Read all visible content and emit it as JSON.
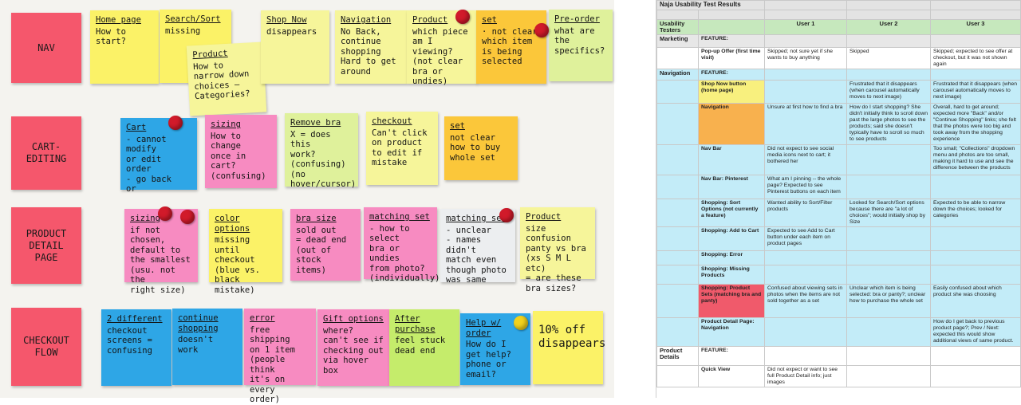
{
  "wall": {
    "rows": [
      {
        "label": "NAV"
      },
      {
        "label": "CART-\nEDITING"
      },
      {
        "label": "PRODUCT\nDETAIL\nPAGE"
      },
      {
        "label": "CHECKOUT\nFLOW"
      }
    ],
    "notes": [
      {
        "head": "Home page",
        "body": "How to\nstart?",
        "color": "yellow"
      },
      {
        "head": "Search/Sort",
        "body": "missing",
        "color": "yellow"
      },
      {
        "head": "Product",
        "body": "How to\nnarrow down\nchoices –\nCategories?",
        "color": "lightyellow"
      },
      {
        "head": "Shop Now",
        "body": "disappears",
        "color": "lightyellow"
      },
      {
        "head": "Navigation",
        "body": "No Back,\ncontinue\nshopping\nHard to get\naround",
        "color": "lightyellow"
      },
      {
        "head": "Product",
        "body": "which piece\nam I\nviewing?\n(not clear\nbra or undies)",
        "color": "lightyellow"
      },
      {
        "head": "set",
        "body": "· not clear\nwhich item\nis being\nselected",
        "color": "orange"
      },
      {
        "head": "Pre-order",
        "body": "what are\nthe specifics?",
        "color": "lightgreen"
      },
      {
        "head": "Cart",
        "body": "- cannot modify\nor edit order\n- go back\nor",
        "color": "blue"
      },
      {
        "head": "sizing",
        "body": "How to change\nonce in\ncart?\n(confusing)",
        "color": "pink"
      },
      {
        "head": "Remove bra",
        "body": "X = does this\nwork?\n(confusing)\n(no hover/cursor)",
        "color": "lightgreen"
      },
      {
        "head": "checkout",
        "body": "Can't click\non product\nto edit if\nmistake",
        "color": "lightyellow"
      },
      {
        "head": "set",
        "body": "not clear\nhow to buy\nwhole set",
        "color": "orange"
      },
      {
        "head": "sizing",
        "body": "if not chosen,\ndefault to\nthe smallest\n(usu. not the\nright size)",
        "color": "pink"
      },
      {
        "head": "color options",
        "body": "missing\nuntil\ncheckout\n(blue vs. black\nmistake)",
        "color": "yellow"
      },
      {
        "head": "bra size",
        "body": "sold out\n= dead end\n(out of stock\nitems)",
        "color": "pink"
      },
      {
        "head": "matching set",
        "body": "- how to select\nbra or undies\nfrom photo?\n(individually)",
        "color": "pink"
      },
      {
        "head": "matching set",
        "body": "- unclear\n- names didn't\nmatch even\nthough photo\nwas same",
        "color": "gray"
      },
      {
        "head": "Product",
        "body": "size confusion\npanty vs bra\n(xs S M L etc)\n= are these\nbra sizes?",
        "color": "lightyellow"
      },
      {
        "head": "2 different",
        "body": "checkout\nscreens =\nconfusing",
        "color": "blue"
      },
      {
        "head": "continue shopping",
        "body": "doesn't work",
        "color": "blue"
      },
      {
        "head": "error",
        "body": "free shipping\non 1 item\n(people think\nit's on every\norder)",
        "color": "pink"
      },
      {
        "head": "Gift options",
        "body": "where?\ncan't see if\nchecking out\nvia hover box",
        "color": "pink"
      },
      {
        "head": "After purchase",
        "body": "feel stuck\ndead end",
        "color": "green"
      },
      {
        "head": "Help w/ order",
        "body": "How do I\nget help?\nphone or\nemail?",
        "color": "blue"
      },
      {
        "head": "",
        "body": "10% off\ndisappears",
        "color": "yellow"
      }
    ]
  },
  "sheet": {
    "title": "Naja Usability Test Results",
    "header": {
      "section": "Usability Testers",
      "users": [
        "User 1",
        "User 2",
        "User 3"
      ]
    },
    "rows": [
      {
        "section": "Marketing",
        "feature": "FEATURE:",
        "u1": "",
        "u2": "",
        "u3": "",
        "style": "grayfeat"
      },
      {
        "section": "",
        "feature": "Pop-up Offer (first time visit)",
        "u1": "Skipped; not sure yet if she wants to buy anything",
        "u2": "Skipped",
        "u3": "Skipped; expected to see offer at checkout, but it was not shown again",
        "style": "white"
      },
      {
        "section": "Navigation",
        "feature": "FEATURE:",
        "u1": "",
        "u2": "",
        "u3": "",
        "style": "blue"
      },
      {
        "section": "",
        "feature": "Shop Now button (home page)",
        "u1": "",
        "u2": "Frustrated that it disappears (when carousel automatically moves to next image)",
        "u3": "Frustrated that it disappears (when carousel automatically moves to next image)",
        "style": "blue",
        "featColor": "yellowc"
      },
      {
        "section": "",
        "feature": "Navigation",
        "u1": "Unsure at first how to find a bra",
        "u2": "How do I start shopping? She didn't initially think to scroll down past the large photos to see the products; said she doesn't typically have to scroll so much to see products",
        "u3": "Overall, hard to get around; expected more \"Back\" and/or \"Continue Shopping\" links; she felt that the photos were too big and took away from the shopping experience",
        "style": "blue",
        "featColor": "orange"
      },
      {
        "section": "",
        "feature": "Nav Bar",
        "u1": "Did not expect to see social media icons next to cart; it bothered her",
        "u2": "",
        "u3": "Too small; \"Collections\" dropdown menu and photos are too small, making it hard to use and see the difference between the products",
        "style": "blue"
      },
      {
        "section": "",
        "feature": "Nav Bar: Pinterest",
        "u1": "What am I pinning -- the whole page? Expected to see Pinterest buttons on each item",
        "u2": "",
        "u3": "",
        "style": "blue"
      },
      {
        "section": "",
        "feature": "Shopping: Sort Options (not currently a feature)",
        "u1": "Wanted ability to Sort/Filter products",
        "u2": "Looked for Search/Sort options because there are \"a lot of choices\"; would initially shop by Size",
        "u3": "Expected to be able to narrow down the choices; looked for categories",
        "style": "blue"
      },
      {
        "section": "",
        "feature": "Shopping: Add to Cart",
        "u1": "Expected to see Add to Cart button under each item on product pages",
        "u2": "",
        "u3": "",
        "style": "blue"
      },
      {
        "section": "",
        "feature": "Shopping: Error",
        "u1": "",
        "u2": "",
        "u3": "",
        "style": "blue"
      },
      {
        "section": "",
        "feature": "Shopping: Missing Products",
        "u1": "",
        "u2": "",
        "u3": "",
        "style": "blue"
      },
      {
        "section": "",
        "feature": "Shopping: Product Sets (matching bra and panty)",
        "u1": "Confused about viewing sets in photos when the items are not sold together as a set",
        "u2": "Unclear which item is being selected: bra or panty?; unclear how to purchase the whole set",
        "u3": "Easily confused about which product she was choosing",
        "style": "blue",
        "featColor": "redc"
      },
      {
        "section": "",
        "feature": "Product Detail Page: Navigation",
        "u1": "",
        "u2": "",
        "u3": "How do I get back to previous product page?; Prev / Next: expected this would show additional views of same product.",
        "style": "blue"
      },
      {
        "section": "Product Details",
        "feature": "FEATURE:",
        "u1": "",
        "u2": "",
        "u3": "",
        "style": "white"
      },
      {
        "section": "",
        "feature": "Quick View",
        "u1": "Did not expect or want to see full Product Detail info; just images",
        "u2": "",
        "u3": "",
        "style": "white"
      }
    ]
  }
}
